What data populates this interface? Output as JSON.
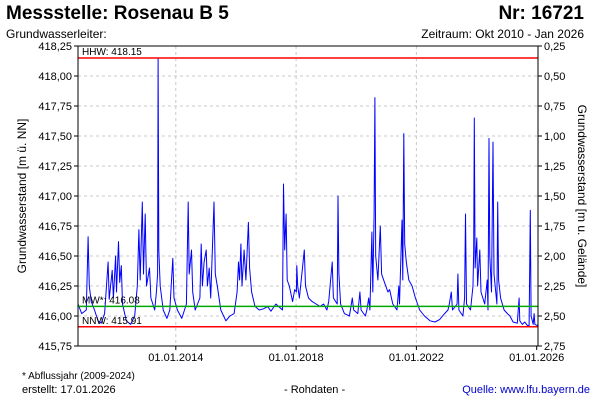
{
  "header": {
    "title": "Messstelle: Rosenau B 5",
    "number": "Nr: 16721",
    "subtitle": "Grundwasserleiter:",
    "period": "Zeitraum: Okt 2010 - Jan 2026"
  },
  "footer": {
    "footnote": "* Abflussjahr (2009-2024)",
    "created": "erstellt:  17.01.2026",
    "rawdata": "- Rohdaten -",
    "source": "Quelle: www.lfu.bayern.de"
  },
  "chart_data": {
    "type": "line",
    "ylabel": "Grundwasserstand [m ü. NN]",
    "y2label": "Grundwasserstand [m u. Gelände]",
    "ylim": [
      415.75,
      418.25
    ],
    "y_ticks": [
      "415,75",
      "416,00",
      "416,25",
      "416,50",
      "416,75",
      "417,00",
      "417,25",
      "417,50",
      "417,75",
      "418,00",
      "418,25"
    ],
    "y2_ticks": [
      "2,75",
      "2,50",
      "2,25",
      "2,00",
      "1,75",
      "1,50",
      "1,25",
      "1,00",
      "0,75",
      "0,50",
      "0,25"
    ],
    "x_ticks": [
      "01.01.2014",
      "01.01.2018",
      "01.01.2022",
      "01.01.2026"
    ],
    "xlim": [
      "2010-10-01",
      "2026-01-17"
    ],
    "reference_lines": [
      {
        "label": "HHW: 418.15",
        "value": 418.15,
        "color": "#ff0000"
      },
      {
        "label": "MW*: 416.08",
        "value": 416.08,
        "color": "#00aa00"
      },
      {
        "label": "NNW: 415.91",
        "value": 415.91,
        "color": "#ff0000"
      }
    ],
    "series": [
      {
        "color": "#0000ff",
        "points": [
          [
            "2010-10-01",
            416.1
          ],
          [
            "2010-11-15",
            416.02
          ],
          [
            "2011-01-10",
            416.05
          ],
          [
            "2011-02-01",
            416.66
          ],
          [
            "2011-02-15",
            416.25
          ],
          [
            "2011-03-10",
            416.12
          ],
          [
            "2011-04-20",
            416.05
          ],
          [
            "2011-06-01",
            415.96
          ],
          [
            "2011-07-10",
            415.94
          ],
          [
            "2011-08-20",
            416.02
          ],
          [
            "2011-10-01",
            416.45
          ],
          [
            "2011-10-15",
            416.14
          ],
          [
            "2011-11-20",
            416.38
          ],
          [
            "2011-12-05",
            416.15
          ],
          [
            "2012-01-01",
            416.5
          ],
          [
            "2012-01-12",
            416.2
          ],
          [
            "2012-02-05",
            416.62
          ],
          [
            "2012-02-20",
            416.28
          ],
          [
            "2012-03-10",
            416.42
          ],
          [
            "2012-03-25",
            416.1
          ],
          [
            "2012-05-10",
            415.96
          ],
          [
            "2012-07-01",
            415.93
          ],
          [
            "2012-08-20",
            416.0
          ],
          [
            "2012-09-20",
            416.25
          ],
          [
            "2012-10-10",
            416.72
          ],
          [
            "2012-10-25",
            416.3
          ],
          [
            "2012-11-20",
            416.95
          ],
          [
            "2012-12-05",
            416.35
          ],
          [
            "2012-12-25",
            416.85
          ],
          [
            "2013-01-10",
            416.25
          ],
          [
            "2013-02-15",
            416.4
          ],
          [
            "2013-03-05",
            416.15
          ],
          [
            "2013-04-20",
            416.05
          ],
          [
            "2013-05-10",
            416.2
          ],
          [
            "2013-05-25",
            416.35
          ],
          [
            "2013-05-31",
            418.15
          ],
          [
            "2013-06-08",
            416.55
          ],
          [
            "2013-06-25",
            416.25
          ],
          [
            "2013-08-01",
            416.05
          ],
          [
            "2013-09-15",
            415.98
          ],
          [
            "2013-10-20",
            416.05
          ],
          [
            "2013-11-25",
            416.48
          ],
          [
            "2013-12-10",
            416.15
          ],
          [
            "2014-01-20",
            416.05
          ],
          [
            "2014-03-15",
            415.98
          ],
          [
            "2014-05-10",
            416.1
          ],
          [
            "2014-06-01",
            416.95
          ],
          [
            "2014-06-12",
            416.35
          ],
          [
            "2014-07-10",
            416.55
          ],
          [
            "2014-07-25",
            416.2
          ],
          [
            "2014-08-25",
            416.05
          ],
          [
            "2014-10-20",
            416.15
          ],
          [
            "2014-11-05",
            416.6
          ],
          [
            "2014-11-20",
            416.25
          ],
          [
            "2014-12-10",
            416.45
          ],
          [
            "2015-01-05",
            416.55
          ],
          [
            "2015-01-20",
            416.25
          ],
          [
            "2015-02-10",
            416.4
          ],
          [
            "2015-03-01",
            416.15
          ],
          [
            "2015-04-10",
            416.95
          ],
          [
            "2015-04-25",
            416.35
          ],
          [
            "2015-05-20",
            416.25
          ],
          [
            "2015-07-01",
            416.05
          ],
          [
            "2015-09-01",
            415.96
          ],
          [
            "2015-10-20",
            416.0
          ],
          [
            "2015-12-10",
            416.02
          ],
          [
            "2016-01-15",
            416.2
          ],
          [
            "2016-02-01",
            416.45
          ],
          [
            "2016-02-15",
            416.3
          ],
          [
            "2016-03-01",
            416.6
          ],
          [
            "2016-03-15",
            416.25
          ],
          [
            "2016-04-10",
            416.55
          ],
          [
            "2016-05-01",
            416.3
          ],
          [
            "2016-06-01",
            416.78
          ],
          [
            "2016-06-15",
            416.4
          ],
          [
            "2016-07-10",
            416.2
          ],
          [
            "2016-08-20",
            416.08
          ],
          [
            "2016-10-10",
            416.05
          ],
          [
            "2016-12-01",
            416.06
          ],
          [
            "2017-01-20",
            416.08
          ],
          [
            "2017-03-01",
            416.04
          ],
          [
            "2017-05-01",
            416.1
          ],
          [
            "2017-06-01",
            416.08
          ],
          [
            "2017-07-20",
            416.05
          ],
          [
            "2017-08-01",
            417.1
          ],
          [
            "2017-08-15",
            416.55
          ],
          [
            "2017-09-01",
            416.85
          ],
          [
            "2017-09-15",
            416.3
          ],
          [
            "2017-10-10",
            416.25
          ],
          [
            "2017-11-20",
            416.12
          ],
          [
            "2017-12-15",
            416.22
          ],
          [
            "2018-01-05",
            416.2
          ],
          [
            "2018-01-10",
            416.42
          ],
          [
            "2018-01-20",
            416.25
          ],
          [
            "2018-02-10",
            416.15
          ],
          [
            "2018-04-10",
            416.55
          ],
          [
            "2018-04-25",
            416.25
          ],
          [
            "2018-06-01",
            416.15
          ],
          [
            "2018-07-15",
            416.12
          ],
          [
            "2018-09-01",
            416.1
          ],
          [
            "2018-10-20",
            416.08
          ],
          [
            "2018-12-01",
            416.1
          ],
          [
            "2019-01-10",
            416.05
          ],
          [
            "2019-02-01",
            416.12
          ],
          [
            "2019-03-15",
            416.45
          ],
          [
            "2019-03-30",
            416.15
          ],
          [
            "2019-05-15",
            416.1
          ],
          [
            "2019-05-25",
            417.0
          ],
          [
            "2019-06-05",
            416.35
          ],
          [
            "2019-06-25",
            416.1
          ],
          [
            "2019-08-10",
            416.02
          ],
          [
            "2019-10-10",
            416.0
          ],
          [
            "2019-11-15",
            416.15
          ],
          [
            "2019-12-01",
            416.05
          ],
          [
            "2020-01-20",
            416.02
          ],
          [
            "2020-02-15",
            416.2
          ],
          [
            "2020-03-01",
            416.05
          ],
          [
            "2020-04-20",
            416.0
          ],
          [
            "2020-05-10",
            416.05
          ],
          [
            "2020-06-01",
            416.15
          ],
          [
            "2020-06-15",
            416.05
          ],
          [
            "2020-07-10",
            416.7
          ],
          [
            "2020-07-20",
            416.2
          ],
          [
            "2020-08-05",
            416.85
          ],
          [
            "2020-08-15",
            417.82
          ],
          [
            "2020-08-25",
            416.5
          ],
          [
            "2020-09-20",
            416.3
          ],
          [
            "2020-10-20",
            416.75
          ],
          [
            "2020-11-05",
            416.35
          ],
          [
            "2020-12-10",
            416.28
          ],
          [
            "2021-01-20",
            416.2
          ],
          [
            "2021-02-10",
            416.22
          ],
          [
            "2021-03-20",
            416.1
          ],
          [
            "2021-05-10",
            416.05
          ],
          [
            "2021-06-01",
            416.25
          ],
          [
            "2021-06-10",
            416.1
          ],
          [
            "2021-07-10",
            416.8
          ],
          [
            "2021-07-20",
            416.3
          ],
          [
            "2021-08-01",
            417.52
          ],
          [
            "2021-08-12",
            416.6
          ],
          [
            "2021-09-01",
            416.45
          ],
          [
            "2021-10-01",
            416.3
          ],
          [
            "2021-11-10",
            416.25
          ],
          [
            "2021-12-20",
            416.15
          ],
          [
            "2022-02-10",
            416.05
          ],
          [
            "2022-04-10",
            416.0
          ],
          [
            "2022-06-15",
            415.96
          ],
          [
            "2022-08-15",
            415.95
          ],
          [
            "2022-10-10",
            415.97
          ],
          [
            "2022-12-10",
            416.02
          ],
          [
            "2023-01-20",
            416.05
          ],
          [
            "2023-02-05",
            416.1
          ],
          [
            "2023-03-01",
            416.2
          ],
          [
            "2023-03-15",
            416.05
          ],
          [
            "2023-05-10",
            416.1
          ],
          [
            "2023-05-20",
            416.35
          ],
          [
            "2023-06-01",
            416.05
          ],
          [
            "2023-07-20",
            416.0
          ],
          [
            "2023-08-10",
            416.15
          ],
          [
            "2023-08-20",
            416.85
          ],
          [
            "2023-09-01",
            416.1
          ],
          [
            "2023-10-20",
            416.05
          ],
          [
            "2023-11-20",
            416.25
          ],
          [
            "2023-11-28",
            416.55
          ],
          [
            "2023-12-05",
            417.65
          ],
          [
            "2023-12-15",
            416.4
          ],
          [
            "2024-01-05",
            416.65
          ],
          [
            "2024-01-15",
            416.25
          ],
          [
            "2024-02-10",
            416.55
          ],
          [
            "2024-02-25",
            416.2
          ],
          [
            "2024-04-10",
            416.1
          ],
          [
            "2024-05-10",
            416.3
          ],
          [
            "2024-05-20",
            416.05
          ],
          [
            "2024-06-01",
            417.48
          ],
          [
            "2024-06-10",
            416.5
          ],
          [
            "2024-07-01",
            416.2
          ],
          [
            "2024-07-20",
            417.45
          ],
          [
            "2024-08-01",
            416.35
          ],
          [
            "2024-09-05",
            416.1
          ],
          [
            "2024-09-15",
            416.95
          ],
          [
            "2024-09-25",
            416.3
          ],
          [
            "2024-10-20",
            416.15
          ],
          [
            "2024-12-01",
            416.05
          ],
          [
            "2025-01-10",
            416.02
          ],
          [
            "2025-02-10",
            416.0
          ],
          [
            "2025-03-20",
            415.95
          ],
          [
            "2025-05-10",
            415.94
          ],
          [
            "2025-06-01",
            416.15
          ],
          [
            "2025-06-10",
            415.96
          ],
          [
            "2025-07-10",
            415.93
          ],
          [
            "2025-08-10",
            415.95
          ],
          [
            "2025-09-10",
            415.92
          ],
          [
            "2025-10-01",
            415.92
          ],
          [
            "2025-10-15",
            416.88
          ],
          [
            "2025-10-25",
            416.0
          ],
          [
            "2025-11-20",
            415.93
          ],
          [
            "2025-12-01",
            416.02
          ],
          [
            "2025-12-10",
            415.93
          ],
          [
            "2026-01-10",
            415.92
          ],
          [
            "2026-01-17",
            415.93
          ]
        ]
      }
    ]
  }
}
